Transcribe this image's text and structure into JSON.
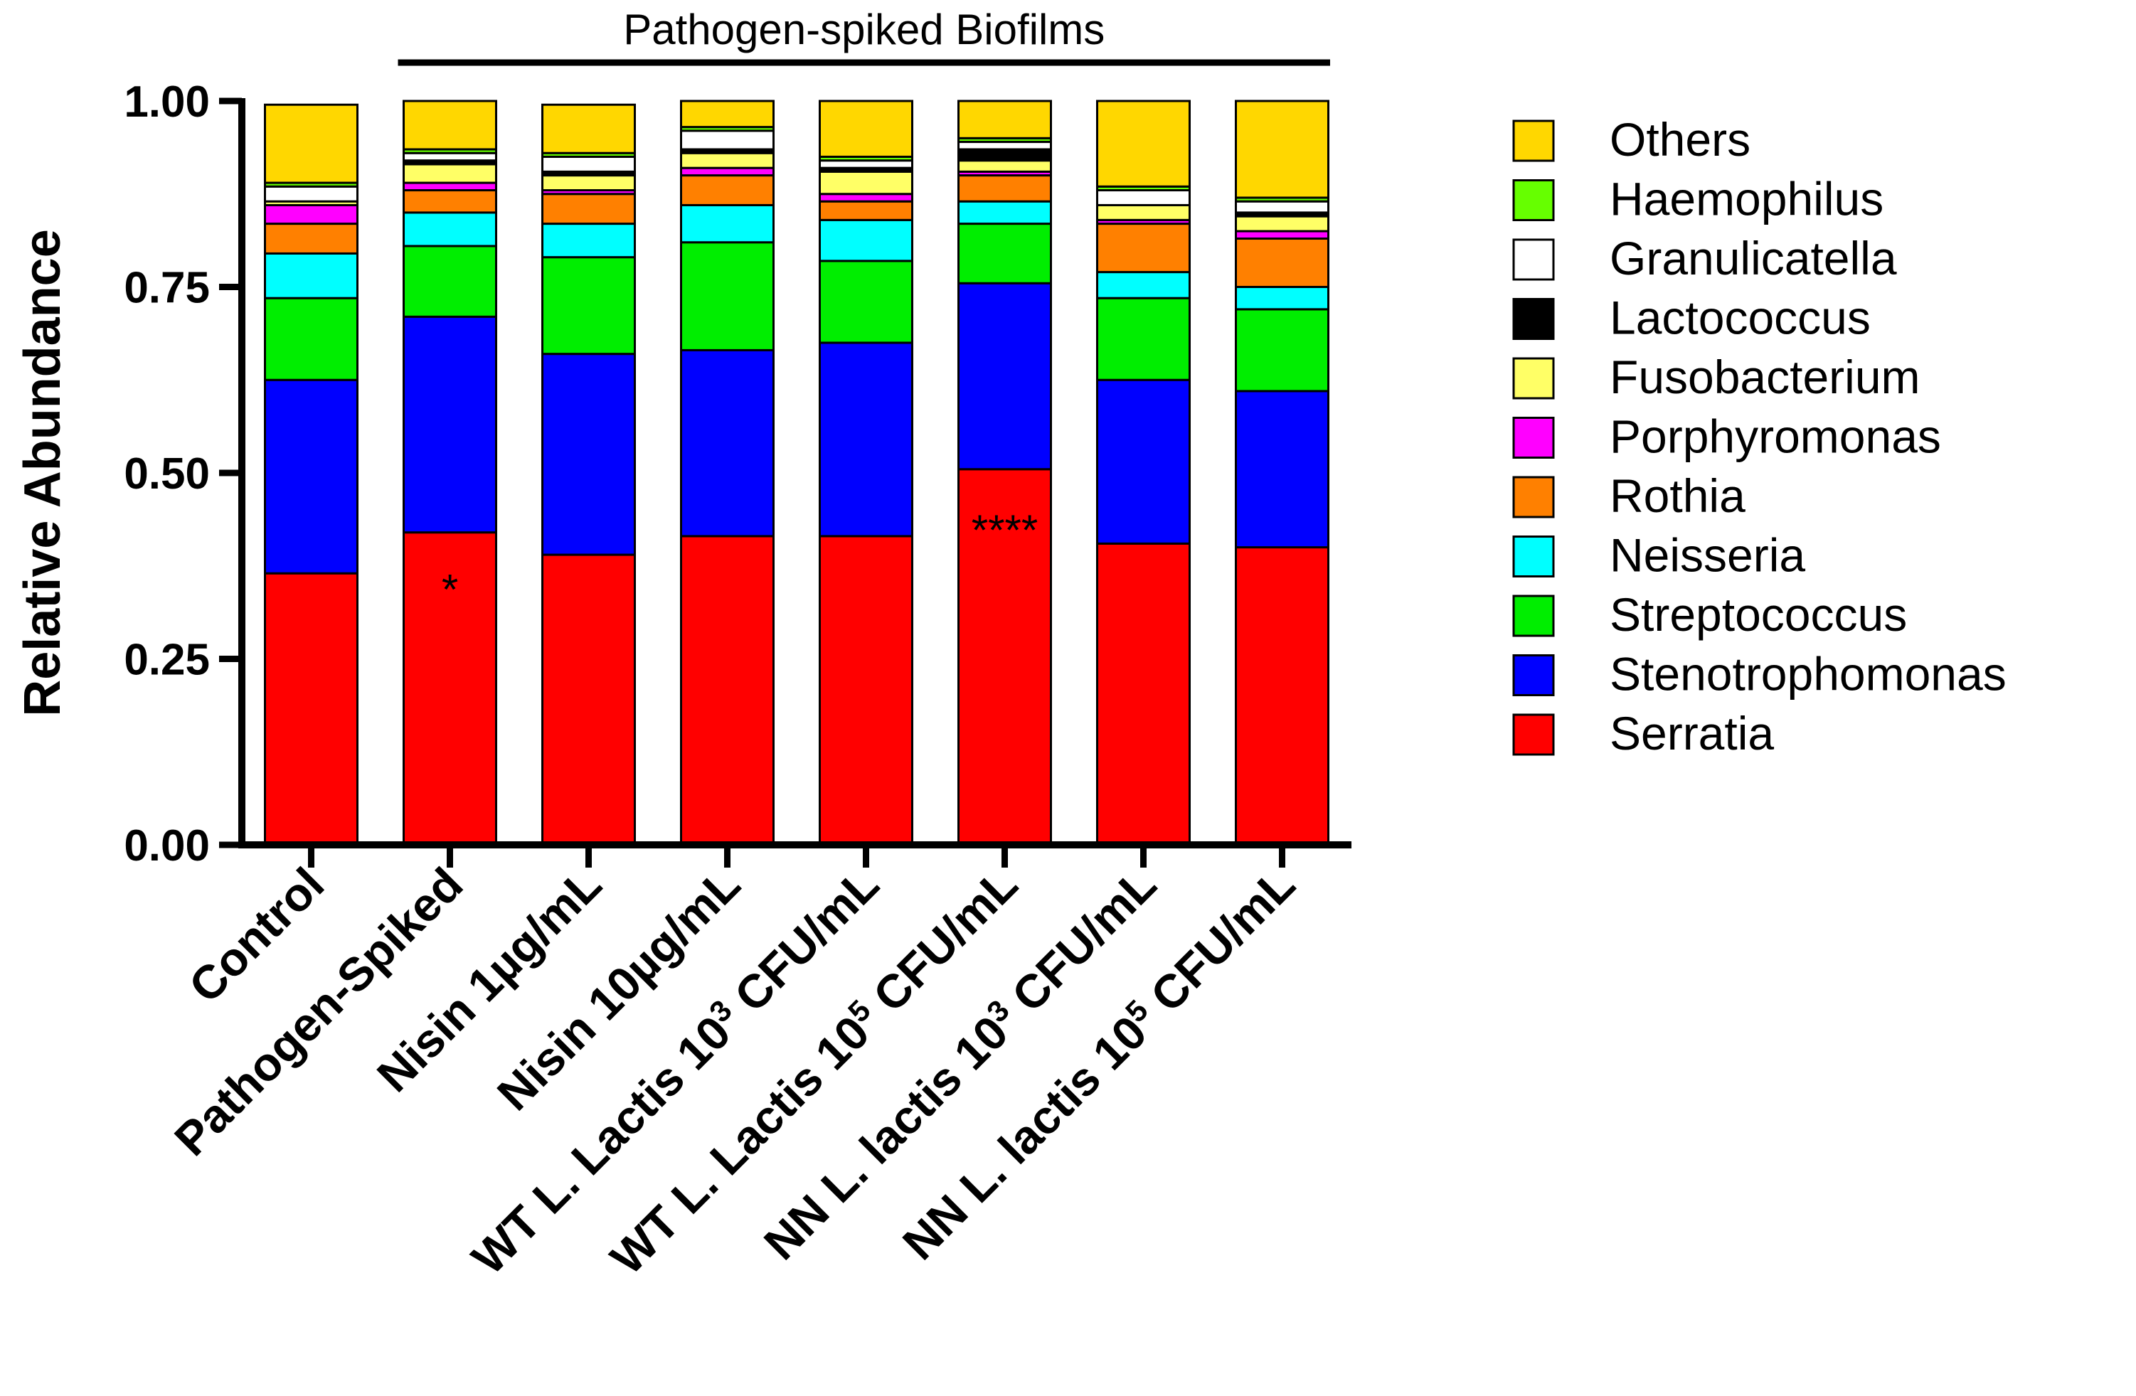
{
  "chart_data": {
    "type": "bar",
    "stacked": true,
    "title": "",
    "group_label": "Pathogen-spiked Biofilms",
    "ylabel": "Relative Abundance",
    "xlabel": "",
    "ylim": [
      0,
      1
    ],
    "yticks": [
      "0.00",
      "0.25",
      "0.50",
      "0.75",
      "1.00"
    ],
    "ytick_values": [
      0,
      0.25,
      0.5,
      0.75,
      1
    ],
    "categories": [
      {
        "text": "Control",
        "sup": "",
        "tail": ""
      },
      {
        "text": "Pathogen-Spiked",
        "sup": "",
        "tail": ""
      },
      {
        "text": "Nisin 1µg/mL",
        "sup": "",
        "tail": ""
      },
      {
        "text": "Nisin 10µg/mL",
        "sup": "",
        "tail": ""
      },
      {
        "text": "WT L. Lactis 10",
        "sup": "3",
        "tail": " CFU/mL"
      },
      {
        "text": "WT L. Lactis 10",
        "sup": "5",
        "tail": " CFU/mL"
      },
      {
        "text": "NN L. lactis 10",
        "sup": "3",
        "tail": " CFU/mL"
      },
      {
        "text": "NN L. lactis 10",
        "sup": "5",
        "tail": " CFU/mL"
      }
    ],
    "annotations": [
      {
        "category_index": 1,
        "text": "*",
        "y": 0.36
      },
      {
        "category_index": 5,
        "text": "****",
        "y": 0.44
      }
    ],
    "series": [
      {
        "name": "Serratia",
        "color": "#FF0000",
        "values": [
          0.365,
          0.42,
          0.39,
          0.415,
          0.415,
          0.505,
          0.405,
          0.4
        ]
      },
      {
        "name": "Stenotrophomonas",
        "color": "#0000FF",
        "values": [
          0.26,
          0.29,
          0.27,
          0.25,
          0.26,
          0.25,
          0.22,
          0.21
        ]
      },
      {
        "name": "Streptococcus",
        "color": "#00EE00",
        "values": [
          0.11,
          0.095,
          0.13,
          0.145,
          0.11,
          0.08,
          0.11,
          0.11
        ]
      },
      {
        "name": "Neisseria",
        "color": "#00FFFF",
        "values": [
          0.06,
          0.045,
          0.045,
          0.05,
          0.055,
          0.03,
          0.035,
          0.03
        ]
      },
      {
        "name": "Rothia",
        "color": "#FF8000",
        "values": [
          0.04,
          0.03,
          0.04,
          0.04,
          0.025,
          0.035,
          0.065,
          0.065
        ]
      },
      {
        "name": "Porphyromonas",
        "color": "#FF00FF",
        "values": [
          0.025,
          0.01,
          0.005,
          0.01,
          0.01,
          0.005,
          0.005,
          0.01
        ]
      },
      {
        "name": "Fusobacterium",
        "color": "#FFFF66",
        "values": [
          0.005,
          0.025,
          0.02,
          0.02,
          0.03,
          0.015,
          0.02,
          0.02
        ]
      },
      {
        "name": "Lactococcus",
        "color": "#000000",
        "values": [
          0.0,
          0.005,
          0.005,
          0.005,
          0.005,
          0.015,
          0.0,
          0.005
        ]
      },
      {
        "name": "Granulicatella",
        "color": "#FFFFFF",
        "values": [
          0.02,
          0.01,
          0.02,
          0.025,
          0.01,
          0.01,
          0.02,
          0.015
        ]
      },
      {
        "name": "Haemophilus",
        "color": "#66FF00",
        "values": [
          0.005,
          0.005,
          0.005,
          0.005,
          0.005,
          0.005,
          0.005,
          0.005
        ]
      },
      {
        "name": "Others",
        "color": "#FFD700",
        "values": [
          0.105,
          0.065,
          0.065,
          0.035,
          0.075,
          0.05,
          0.115,
          0.13
        ]
      }
    ]
  }
}
